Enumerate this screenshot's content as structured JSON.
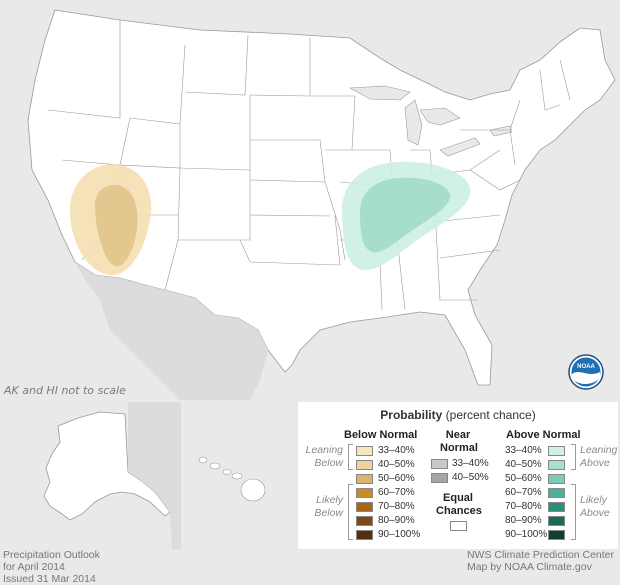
{
  "map": {
    "note_scale": "AK and HI not to scale",
    "logo_text": "NOAA",
    "colors": {
      "land": "#ffffff",
      "water": "#e9e9e9",
      "border": "#9a9a9a",
      "below_33": "#f5dfb1",
      "below_40": "#ecd09b",
      "above_33": "#cceee4",
      "above_40": "#a9ddd0"
    }
  },
  "legend": {
    "title_bold": "Probability",
    "title_rest": " (percent chance)",
    "below_head": "Below Normal",
    "near_head_1": "Near",
    "near_head_2": "Normal",
    "above_head": "Above Normal",
    "leaning_below_1": "Leaning",
    "leaning_below_2": "Below",
    "likely_below_1": "Likely",
    "likely_below_2": "Below",
    "leaning_above_1": "Leaning",
    "leaning_above_2": "Above",
    "likely_above_1": "Likely",
    "likely_above_2": "Above",
    "equal_1": "Equal",
    "equal_2": "Chances",
    "below": [
      {
        "label": "33–40%",
        "color": "#f8e6bf"
      },
      {
        "label": "40–50%",
        "color": "#edd39e"
      },
      {
        "label": "50–60%",
        "color": "#dcb36b"
      },
      {
        "label": "60–70%",
        "color": "#c78c2d"
      },
      {
        "label": "70–80%",
        "color": "#a8661b"
      },
      {
        "label": "80–90%",
        "color": "#7c4a12"
      },
      {
        "label": "90–100%",
        "color": "#52300a"
      }
    ],
    "near": [
      {
        "label": "33–40%",
        "color": "#c9c9c9"
      },
      {
        "label": "40–50%",
        "color": "#a5a5a5"
      }
    ],
    "above": [
      {
        "label": "33–40%",
        "color": "#d2efe8"
      },
      {
        "label": "40–50%",
        "color": "#aadfd2"
      },
      {
        "label": "50–60%",
        "color": "#7ccbb8"
      },
      {
        "label": "60–70%",
        "color": "#4fb19c"
      },
      {
        "label": "70–80%",
        "color": "#2b8f7a"
      },
      {
        "label": "80–90%",
        "color": "#196a59"
      },
      {
        "label": "90–100%",
        "color": "#0d3f35"
      }
    ]
  },
  "footer": {
    "left_1": "Precipitation Outlook",
    "left_2": "for April 2014",
    "left_3": "Issued 31 Mar 2014",
    "right_1": "NWS Climate Prediction Center",
    "right_2": "Map by NOAA Climate.gov"
  }
}
